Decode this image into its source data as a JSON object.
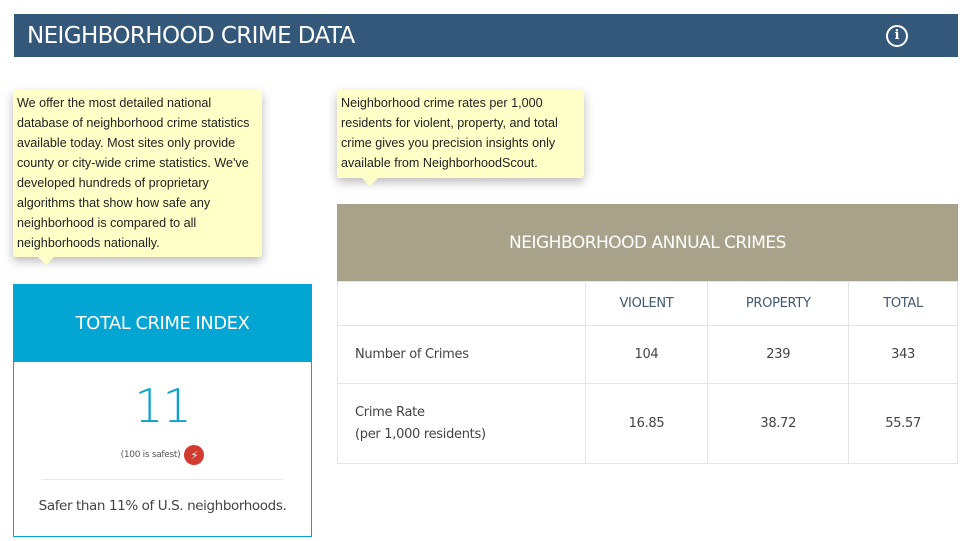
{
  "header": {
    "title": "NEIGHBORHOOD CRIME DATA",
    "info_icon": "info-circle-icon"
  },
  "tooltips": {
    "left": "We offer the most detailed national database of neighborhood crime statistics available today. Most sites only provide county or city-wide crime statistics. We've developed hundreds of proprietary algorithms that show how safe any neighborhood is compared to all neighborhoods nationally.",
    "right": "Neighborhood crime rates per 1,000 residents for violent, property, and total crime gives you precision insights only available from NeighborhoodScout."
  },
  "crime_index": {
    "title": "TOTAL CRIME INDEX",
    "value": "11",
    "note": "(100 is safest)",
    "note_icon": "lightning-bolt-icon",
    "compare": "Safer than 11% of U.S. neighborhoods.",
    "accent_color": "#03a5d3",
    "badge_color": "#d23b2f"
  },
  "annual_crimes": {
    "title": "NEIGHBORHOOD ANNUAL CRIMES",
    "columns": [
      "",
      "VIOLENT",
      "PROPERTY",
      "TOTAL"
    ],
    "rows": [
      {
        "label": "Number of Crimes",
        "sublabel": "",
        "values": [
          "104",
          "239",
          "343"
        ]
      },
      {
        "label": "Crime Rate",
        "sublabel": "(per 1,000 residents)",
        "values": [
          "16.85",
          "38.72",
          "55.57"
        ]
      }
    ],
    "header_color": "#a8a28a"
  },
  "colors": {
    "header_bar": "#34587a",
    "tooltip_bg": "#ffffc8"
  }
}
